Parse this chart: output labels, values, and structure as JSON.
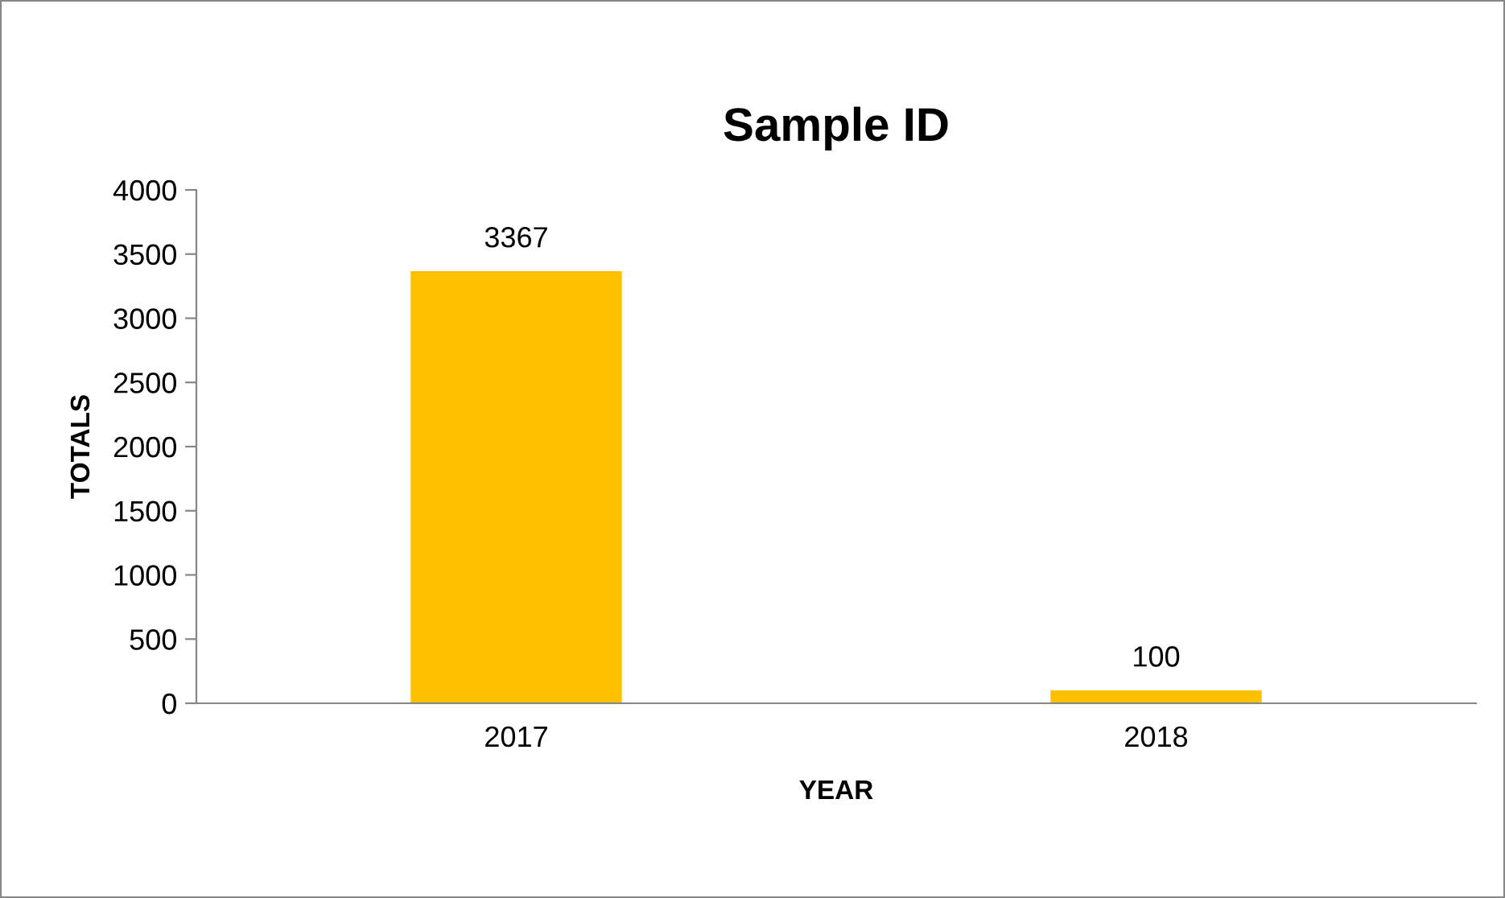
{
  "chart_data": {
    "type": "bar",
    "title": "Sample ID",
    "xlabel": "YEAR",
    "ylabel": "TOTALS",
    "categories": [
      "2017",
      "2018"
    ],
    "values": [
      3367,
      100
    ],
    "color": "#ffc000",
    "ylim": [
      0,
      4000
    ],
    "yticks": [
      0,
      500,
      1000,
      1500,
      2000,
      2500,
      3000,
      3500,
      4000
    ],
    "data_labels": true,
    "grid": false,
    "legend": false
  }
}
